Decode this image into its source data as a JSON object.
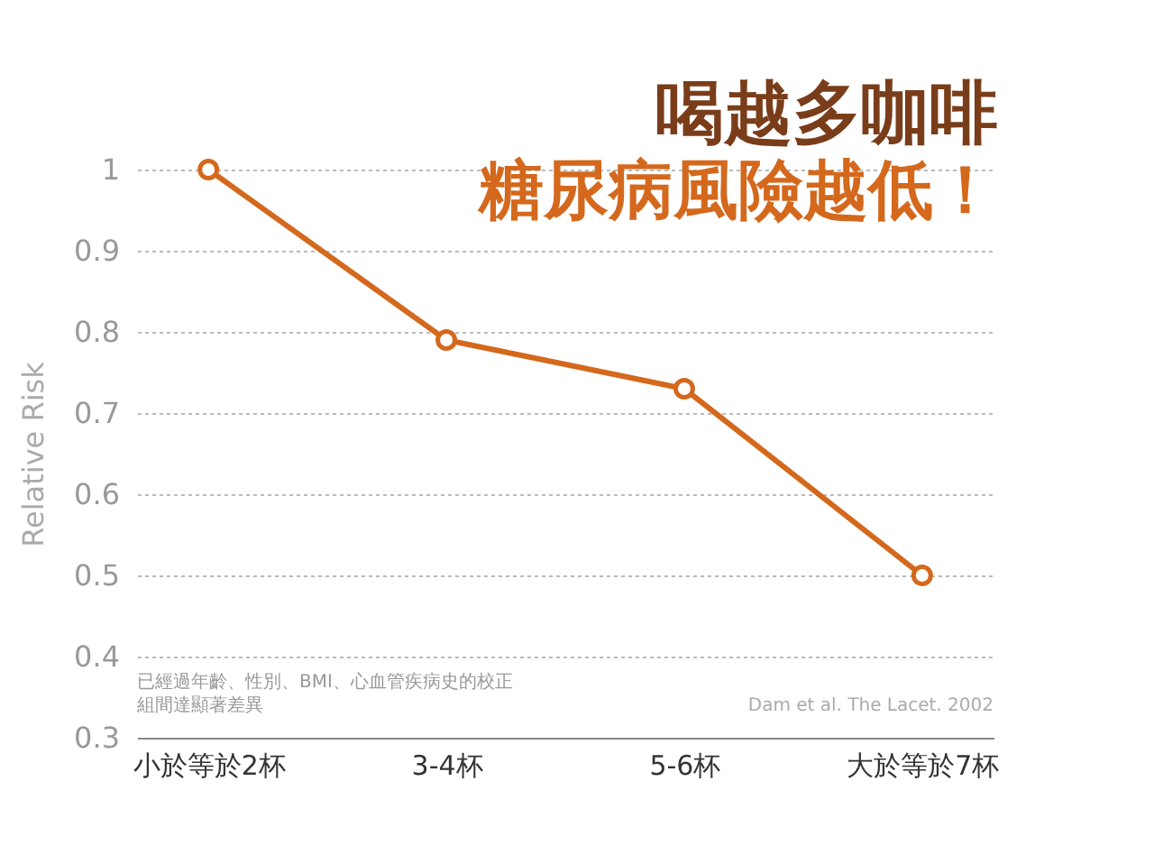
{
  "chart_data": {
    "type": "line",
    "title": "喝越多咖啡",
    "subtitle": "糖尿病風險越低！",
    "ylabel": "Relative Risk",
    "categories": [
      "小於等於2杯",
      "3-4杯",
      "5-6杯",
      "大於等於7杯"
    ],
    "series": [
      {
        "color": "#d4681c",
        "values": [
          1,
          0.79,
          0.73,
          0.5
        ]
      }
    ],
    "ylim": [
      0.3,
      1
    ],
    "yticks": [
      0.3,
      0.4,
      0.5,
      0.6,
      0.7,
      0.8,
      0.9,
      1
    ],
    "grid": "y",
    "marker": "circle",
    "line_style": "solid",
    "legend": false,
    "annotations": [
      "已經過年齡、性別、BMI、心血管疾病史的校正",
      "組間達顯著差異",
      "Dam et al. The Lacet. 2002"
    ]
  }
}
